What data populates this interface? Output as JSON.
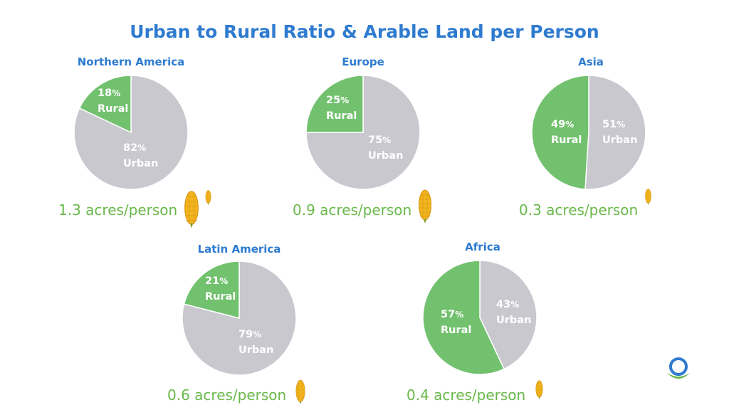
{
  "title": "Urban to Rural Ratio & Arable Land per Person",
  "colors": {
    "rural": "#72c16e",
    "urban": "#c9c8cf",
    "title": "#2e7bd0",
    "acres": "#69b84a",
    "corn": "#f2b51f"
  },
  "chart_data": [
    {
      "type": "pie",
      "title": "Northern America",
      "slices": [
        {
          "label": "Rural",
          "value": 18
        },
        {
          "label": "Urban",
          "value": 82
        }
      ],
      "footnote": "1.3 acres/person",
      "corn_icons": [
        "large-corn",
        "small-corn"
      ]
    },
    {
      "type": "pie",
      "title": "Europe",
      "slices": [
        {
          "label": "Rural",
          "value": 25
        },
        {
          "label": "Urban",
          "value": 75
        }
      ],
      "footnote": "0.9 acres/person",
      "corn_icons": [
        "large-corn"
      ]
    },
    {
      "type": "pie",
      "title": "Asia",
      "slices": [
        {
          "label": "Rural",
          "value": 49
        },
        {
          "label": "Urban",
          "value": 51
        }
      ],
      "footnote": "0.3 acres/person",
      "corn_icons": [
        "small-corn"
      ]
    },
    {
      "type": "pie",
      "title": "Latin America",
      "slices": [
        {
          "label": "Rural",
          "value": 21
        },
        {
          "label": "Urban",
          "value": 79
        }
      ],
      "footnote": "0.6 acres/person",
      "corn_icons": [
        "large-corn"
      ]
    },
    {
      "type": "pie",
      "title": "Africa",
      "slices": [
        {
          "label": "Rural",
          "value": 57
        },
        {
          "label": "Urban",
          "value": 43
        }
      ],
      "footnote": "0.4 acres/person",
      "corn_icons": [
        "medium-corn"
      ]
    }
  ],
  "pct_suffix": "%",
  "logo_icon": "circle-swoosh-logo"
}
